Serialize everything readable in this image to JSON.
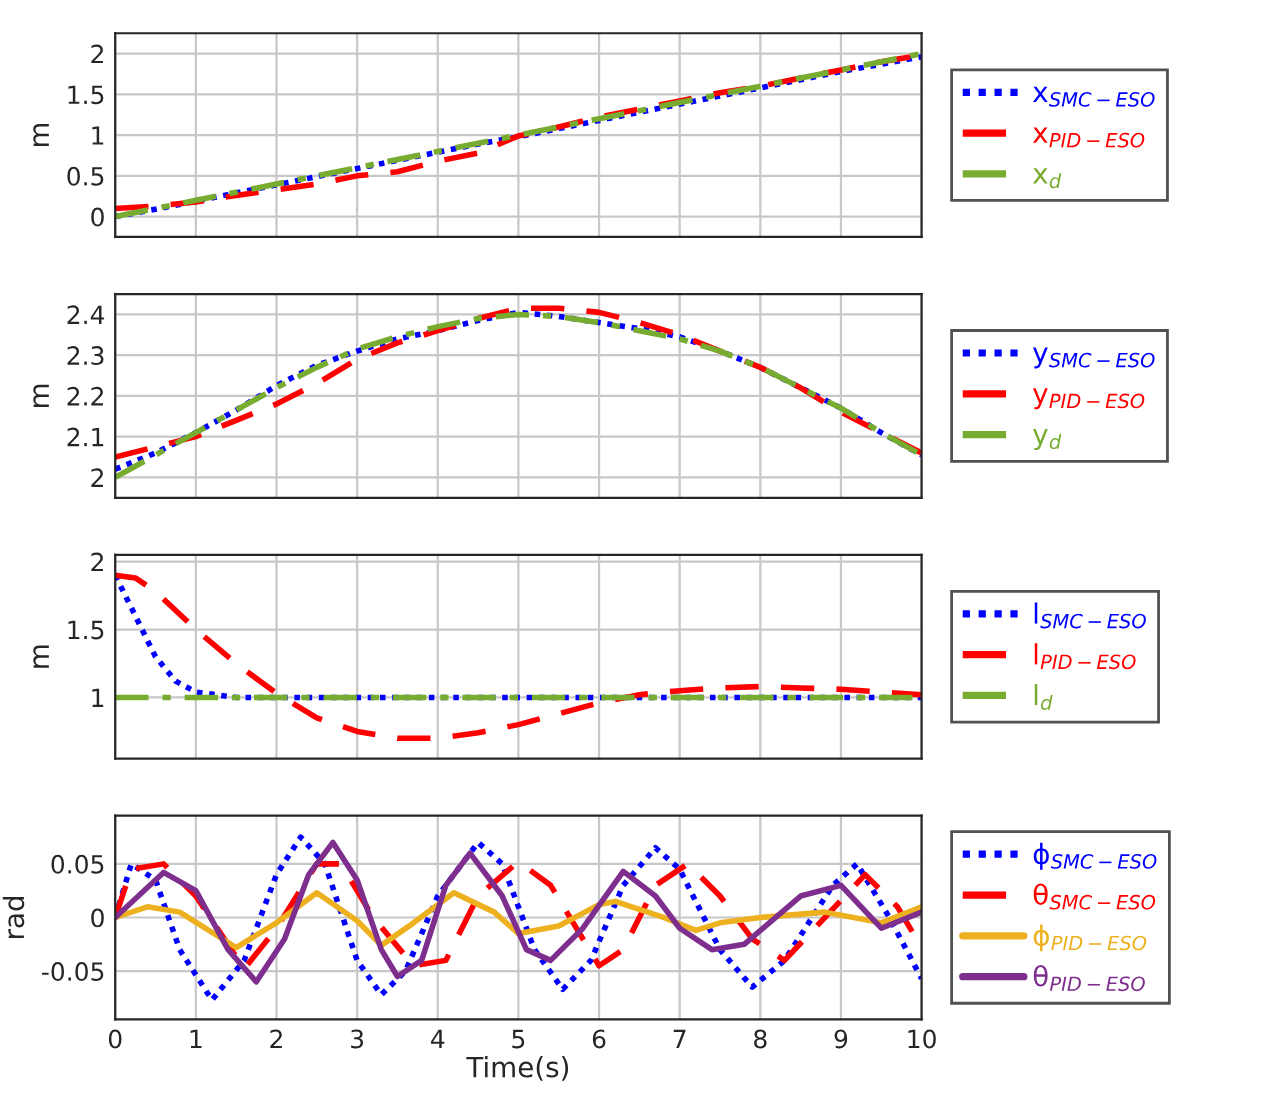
{
  "chart_data": [
    {
      "type": "line",
      "ylabel": "m",
      "xlim": [
        0,
        10
      ],
      "xticks": [
        0,
        1,
        2,
        3,
        4,
        5,
        6,
        7,
        8,
        9,
        10
      ],
      "ylim": [
        -0.25,
        2.25
      ],
      "yticks": [
        0,
        0.5,
        1,
        1.5,
        2
      ],
      "tick_labels": "y",
      "grid": true,
      "legend": "right",
      "x": [
        0,
        0.5,
        1,
        1.5,
        2,
        2.5,
        3,
        3.5,
        4,
        4.5,
        5,
        5.5,
        6,
        6.5,
        7,
        7.5,
        8,
        8.5,
        9,
        9.5,
        10
      ],
      "series": [
        {
          "name": "x$_{SMC−ESO}$",
          "color": "#0000ff",
          "line_style": "dotted",
          "values": [
            0,
            0.09,
            0.19,
            0.29,
            0.39,
            0.49,
            0.59,
            0.69,
            0.79,
            0.89,
            0.98,
            1.08,
            1.18,
            1.28,
            1.38,
            1.48,
            1.58,
            1.68,
            1.78,
            1.87,
            1.96
          ]
        },
        {
          "name": "x$_{PID−ESO}$",
          "color": "#ff0000",
          "line_style": "dashed",
          "values": [
            0.1,
            0.13,
            0.18,
            0.26,
            0.33,
            0.4,
            0.5,
            0.55,
            0.68,
            0.78,
            0.99,
            1.1,
            1.22,
            1.32,
            1.42,
            1.52,
            1.6,
            1.7,
            1.8,
            1.9,
            1.98
          ]
        },
        {
          "name": "x$_{d}$",
          "color": "#77ac30",
          "line_style": "dashdot",
          "values": [
            0,
            0.1,
            0.2,
            0.3,
            0.4,
            0.5,
            0.6,
            0.7,
            0.8,
            0.9,
            1.0,
            1.1,
            1.2,
            1.3,
            1.4,
            1.5,
            1.6,
            1.7,
            1.8,
            1.9,
            2.0
          ]
        }
      ]
    },
    {
      "type": "line",
      "ylabel": "m",
      "xlim": [
        0,
        10
      ],
      "xticks": [
        0,
        1,
        2,
        3,
        4,
        5,
        6,
        7,
        8,
        9,
        10
      ],
      "ylim": [
        1.95,
        2.45
      ],
      "yticks": [
        2,
        2.1,
        2.2,
        2.3,
        2.4
      ],
      "tick_labels": "y",
      "grid": true,
      "legend": "right",
      "x": [
        0,
        0.5,
        1,
        1.5,
        2,
        2.5,
        3,
        3.5,
        4,
        4.5,
        5,
        5.5,
        6,
        6.5,
        7,
        7.5,
        8,
        8.5,
        9,
        9.5,
        10
      ],
      "series": [
        {
          "name": "y$_{SMC−ESO}$",
          "color": "#0000ff",
          "line_style": "dotted",
          "values": [
            2.02,
            2.06,
            2.11,
            2.165,
            2.225,
            2.275,
            2.31,
            2.34,
            2.36,
            2.385,
            2.405,
            2.395,
            2.38,
            2.365,
            2.345,
            2.31,
            2.27,
            2.22,
            2.17,
            2.11,
            2.055
          ]
        },
        {
          "name": "y$_{PID−ESO}$",
          "color": "#ff0000",
          "line_style": "dashed",
          "values": [
            2.05,
            2.075,
            2.1,
            2.14,
            2.18,
            2.23,
            2.29,
            2.33,
            2.36,
            2.39,
            2.415,
            2.415,
            2.405,
            2.38,
            2.35,
            2.31,
            2.27,
            2.22,
            2.16,
            2.11,
            2.06
          ]
        },
        {
          "name": "y$_{d}$",
          "color": "#77ac30",
          "line_style": "dashdot",
          "values": [
            2.0,
            2.055,
            2.11,
            2.165,
            2.22,
            2.27,
            2.315,
            2.345,
            2.37,
            2.39,
            2.4,
            2.395,
            2.38,
            2.36,
            2.34,
            2.31,
            2.27,
            2.22,
            2.17,
            2.11,
            2.055
          ]
        }
      ]
    },
    {
      "type": "line",
      "ylabel": "m",
      "xlim": [
        0,
        10
      ],
      "xticks": [
        0,
        1,
        2,
        3,
        4,
        5,
        6,
        7,
        8,
        9,
        10
      ],
      "ylim": [
        0.55,
        2.05
      ],
      "yticks": [
        1,
        1.5,
        2
      ],
      "tick_labels": "y",
      "grid": true,
      "legend": "right",
      "series": [
        {
          "name": "l$_{SMC−ESO}$",
          "color": "#0000ff",
          "line_style": "dotted",
          "x": [
            0,
            0.25,
            0.5,
            0.75,
            1,
            1.5,
            2,
            3,
            4,
            5,
            6,
            7,
            8,
            9,
            10
          ],
          "values": [
            1.9,
            1.6,
            1.3,
            1.12,
            1.04,
            1.0,
            1.0,
            1.0,
            1.0,
            1.0,
            1.0,
            1.0,
            1.0,
            1.0,
            1.0
          ]
        },
        {
          "name": "l$_{PID−ESO}$",
          "color": "#ff0000",
          "line_style": "dashed",
          "x": [
            0,
            0.25,
            0.5,
            1,
            1.5,
            2,
            2.5,
            3,
            3.5,
            4,
            4.5,
            5,
            5.5,
            6,
            6.5,
            7,
            7.5,
            8,
            8.5,
            9,
            9.5,
            10
          ],
          "values": [
            1.9,
            1.88,
            1.78,
            1.5,
            1.25,
            1.03,
            0.85,
            0.75,
            0.7,
            0.7,
            0.74,
            0.8,
            0.88,
            0.96,
            1.02,
            1.05,
            1.07,
            1.08,
            1.07,
            1.06,
            1.04,
            1.02
          ]
        },
        {
          "name": "l$_{d}$",
          "color": "#77ac30",
          "line_style": "dashdot",
          "x": [
            0,
            10
          ],
          "values": [
            1.0,
            1.0
          ]
        }
      ]
    },
    {
      "type": "line",
      "ylabel": "rad",
      "xlabel": "Time(s)",
      "xlim": [
        0,
        10
      ],
      "xticks": [
        0,
        1,
        2,
        3,
        4,
        5,
        6,
        7,
        8,
        9,
        10
      ],
      "ylim": [
        -0.095,
        0.095
      ],
      "yticks": [
        {
          "value": -0.05,
          "label": "-0.05"
        },
        0,
        0.05
      ],
      "grid": true,
      "legend": "right",
      "series": [
        {
          "name": "ϕ$_{SMC−ESO}$",
          "color": "#0000ff",
          "line_style": "dotted",
          "x": [
            0,
            0.2,
            0.5,
            0.8,
            1.2,
            1.6,
            2.0,
            2.3,
            2.6,
            3.0,
            3.3,
            3.6,
            4.0,
            4.5,
            4.8,
            5.2,
            5.55,
            5.9,
            6.3,
            6.7,
            7.0,
            7.5,
            7.9,
            8.3,
            8.9,
            9.2,
            9.6,
            10
          ],
          "values": [
            0,
            0.05,
            0.035,
            -0.03,
            -0.077,
            -0.04,
            0.04,
            0.075,
            0.05,
            -0.04,
            -0.072,
            -0.05,
            0.02,
            0.07,
            0.05,
            -0.03,
            -0.067,
            -0.04,
            0.03,
            0.065,
            0.045,
            -0.03,
            -0.065,
            -0.04,
            0.03,
            0.05,
            0.0,
            -0.057
          ]
        },
        {
          "name": "θ$_{SMC−ESO}$",
          "color": "#ff0000",
          "line_style": "dashed",
          "x": [
            0,
            0.2,
            0.6,
            1.0,
            1.6,
            2.0,
            2.5,
            2.8,
            3.2,
            3.7,
            4.1,
            4.5,
            5.0,
            5.4,
            6.0,
            6.3,
            6.7,
            7.1,
            7.5,
            7.9,
            8.3,
            8.8,
            9.3,
            9.7,
            10
          ],
          "values": [
            0,
            0.045,
            0.05,
            0.02,
            -0.048,
            -0.01,
            0.05,
            0.05,
            0.0,
            -0.045,
            -0.04,
            0.02,
            0.052,
            0.03,
            -0.045,
            -0.03,
            0.03,
            0.05,
            0.02,
            -0.02,
            -0.04,
            0.0,
            0.04,
            0.01,
            -0.028
          ]
        },
        {
          "name": "ϕ$_{PID−ESO}$",
          "color": "#edb120",
          "line_style": "solid",
          "x": [
            0,
            0.4,
            0.8,
            1.5,
            2.0,
            2.5,
            3.0,
            3.3,
            3.7,
            4.2,
            4.7,
            5.0,
            5.5,
            6.0,
            6.2,
            6.8,
            7.2,
            7.5,
            8.0,
            8.8,
            9.5,
            10
          ],
          "values": [
            0,
            0.01,
            0.005,
            -0.028,
            -0.005,
            0.023,
            -0.003,
            -0.026,
            -0.005,
            0.023,
            0.005,
            -0.015,
            -0.008,
            0.012,
            0.015,
            0.0,
            -0.012,
            -0.005,
            0.0,
            0.005,
            -0.005,
            0.01
          ]
        },
        {
          "name": "θ$_{PID−ESO}$",
          "color": "#7e2f8e",
          "line_style": "solid",
          "x": [
            0,
            0.6,
            1.0,
            1.4,
            1.75,
            2.1,
            2.4,
            2.7,
            3.0,
            3.3,
            3.5,
            3.8,
            4.1,
            4.4,
            4.8,
            5.1,
            5.4,
            5.8,
            6.3,
            6.7,
            7.0,
            7.4,
            7.8,
            8.5,
            9.0,
            9.5,
            10
          ],
          "values": [
            0,
            0.042,
            0.025,
            -0.03,
            -0.06,
            -0.02,
            0.04,
            0.07,
            0.035,
            -0.03,
            -0.055,
            -0.04,
            0.03,
            0.06,
            0.02,
            -0.03,
            -0.04,
            -0.01,
            0.043,
            0.02,
            -0.01,
            -0.03,
            -0.025,
            0.02,
            0.03,
            -0.01,
            0.005
          ]
        }
      ]
    }
  ]
}
